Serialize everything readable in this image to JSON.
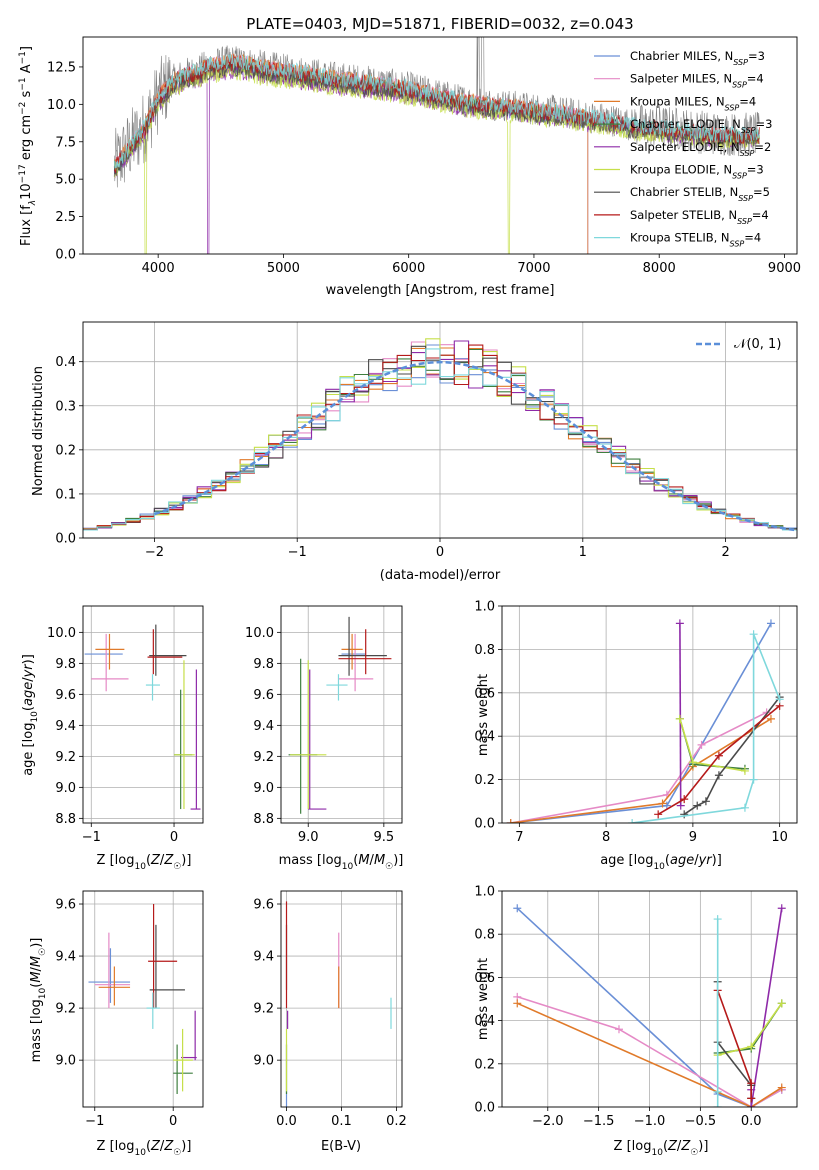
{
  "colors": {
    "chabrier_miles": "#6a8fd6",
    "salpeter_miles": "#e58ac6",
    "kroupa_miles": "#e07a2a",
    "chabrier_elodie": "#3f7f3f",
    "salpeter_elodie": "#8e2aa8",
    "kroupa_elodie": "#c6df4a",
    "chabrier_stelib": "#4a4a4a",
    "salpeter_stelib": "#b51a1a",
    "kroupa_stelib": "#7fd8dc",
    "data_gray": "#808080",
    "normal_curve": "#5b8fd9"
  },
  "chart_data": [
    {
      "id": "spectrum",
      "type": "line",
      "title": "PLATE=0403, MJD=51871, FIBERID=0032, z=0.043",
      "xlabel": "wavelength [Angstrom, rest frame]",
      "ylabel": "Flux [f$_\\lambda$10$^{-17}$ erg cm$^{-2}$ s$^{-1}$ A$^{-1}$]",
      "ylabel_parts": [
        "Flux [f",
        "λ",
        "10",
        "−17",
        " erg cm",
        "−2",
        " s",
        "−1",
        " A",
        "−1",
        "]"
      ],
      "xlim": [
        3400,
        9100
      ],
      "ylim": [
        0,
        14.5
      ],
      "xticks": [
        4000,
        5000,
        6000,
        7000,
        8000,
        9000
      ],
      "yticks": [
        0.0,
        2.5,
        5.0,
        7.5,
        10.0,
        12.5
      ],
      "ytick_labels": [
        "0.0",
        "2.5",
        "5.0",
        "7.5",
        "10.0",
        "12.5"
      ],
      "grid": false,
      "legend_position": "top-right",
      "continuum": {
        "x": [
          3650,
          3700,
          3800,
          3900,
          4000,
          4100,
          4200,
          4300,
          4400,
          4500,
          4600,
          4700,
          4800,
          5000,
          5200,
          5400,
          5600,
          5800,
          6000,
          6200,
          6400,
          6600,
          6800,
          7000,
          7200,
          7400,
          7600,
          7800,
          8000,
          8200,
          8400,
          8600,
          8800
        ],
        "y": [
          5.8,
          6.4,
          7.5,
          8.6,
          10.5,
          11.5,
          12.0,
          12.2,
          12.6,
          12.8,
          12.9,
          12.8,
          12.6,
          12.3,
          12.1,
          11.8,
          11.6,
          11.4,
          11.1,
          10.7,
          10.3,
          10.1,
          9.9,
          9.7,
          9.5,
          9.2,
          9.0,
          8.6,
          8.5,
          8.3,
          8.1,
          8.0,
          8.0
        ]
      },
      "series_names": [
        "Chabrier MILES, N_SSP=3",
        "Salpeter MILES, N_SSP=4",
        "Kroupa MILES, N_SSP=4",
        "Chabrier ELODIE, N_SSP=3",
        "Salpeter ELODIE, N_SSP=2",
        "Kroupa ELODIE, N_SSP=3",
        "Chabrier STELIB, N_SSP=5",
        "Salpeter STELIB, N_SSP=4",
        "Kroupa STELIB, N_SSP=4"
      ],
      "legend": [
        {
          "name": "Chabrier MILES, N",
          "sub": "SSP",
          "suffix": "=3",
          "color_key": "chabrier_miles"
        },
        {
          "name": "Salpeter MILES, N",
          "sub": "SSP",
          "suffix": "=4",
          "color_key": "salpeter_miles"
        },
        {
          "name": "Kroupa MILES, N",
          "sub": "SSP",
          "suffix": "=4",
          "color_key": "kroupa_miles"
        },
        {
          "name": "Chabrier ELODIE, N",
          "sub": "SSP",
          "suffix": "=3",
          "color_key": "chabrier_elodie"
        },
        {
          "name": "Salpeter ELODIE, N",
          "sub": "SSP",
          "suffix": "=2",
          "color_key": "salpeter_elodie"
        },
        {
          "name": "Kroupa ELODIE, N",
          "sub": "SSP",
          "suffix": "=3",
          "color_key": "kroupa_elodie"
        },
        {
          "name": "Chabrier STELIB, N",
          "sub": "SSP",
          "suffix": "=5",
          "color_key": "chabrier_stelib"
        },
        {
          "name": "Salpeter STELIB, N",
          "sub": "SSP",
          "suffix": "=4",
          "color_key": "salpeter_stelib"
        },
        {
          "name": "Kroupa STELIB, N",
          "sub": "SSP",
          "suffix": "=4",
          "color_key": "kroupa_stelib"
        }
      ],
      "annotations": [
        {
          "desc": "Salpeter ELODIE model drops to zero near 4400 A"
        },
        {
          "desc": "Kroupa ELODIE model drops to zero near 3900 A and 6800 A"
        },
        {
          "desc": "Kroupa MILES model drops to zero near 7430 A"
        }
      ]
    },
    {
      "id": "residuals",
      "type": "line",
      "xlabel": "(data-model)/error",
      "ylabel": "Normed distribution",
      "xlim": [
        -2.5,
        2.5
      ],
      "ylim": [
        0,
        0.49
      ],
      "xticks": [
        -2,
        -1,
        0,
        1,
        2
      ],
      "xtick_labels": [
        "−2",
        "−1",
        "0",
        "1",
        "2"
      ],
      "yticks": [
        0.0,
        0.1,
        0.2,
        0.3,
        0.4
      ],
      "ytick_labels": [
        "0.0",
        "0.1",
        "0.2",
        "0.3",
        "0.4"
      ],
      "grid": true,
      "legend_position": "top-right",
      "legend_label": "𝒩(0, 1)",
      "bin_width": 0.1
    },
    {
      "id": "age_vs_Z",
      "type": "scatter",
      "xlabel": "Z [log10(Z/Z☉)]",
      "ylabel": "age [log10(age/yr)]",
      "xlim": [
        -1.1,
        0.35
      ],
      "ylim": [
        8.77,
        10.17
      ],
      "xticks": [
        -1,
        0
      ],
      "xtick_labels": [
        "−1",
        "0"
      ],
      "yticks": [
        8.8,
        9.0,
        9.2,
        9.4,
        9.6,
        9.8,
        10.0
      ],
      "ytick_labels": [
        "8.8",
        "9.0",
        "9.2",
        "9.4",
        "9.6",
        "9.8",
        "10.0"
      ],
      "grid": true,
      "points": [
        {
          "k": "chabrier_miles",
          "x": -0.85,
          "y": 9.86,
          "xl": -1.08,
          "xh": -0.62,
          "yl": 9.86,
          "yh": 9.86
        },
        {
          "k": "salpeter_miles",
          "x": -0.82,
          "y": 9.7,
          "xl": -1.0,
          "xh": -0.55,
          "yl": 9.62,
          "yh": 9.99
        },
        {
          "k": "kroupa_miles",
          "x": -0.78,
          "y": 9.89,
          "xl": -0.95,
          "xh": -0.6,
          "yl": 9.76,
          "yh": 9.99
        },
        {
          "k": "chabrier_elodie",
          "x": 0.08,
          "y": 9.21,
          "xl": 0.0,
          "xh": 0.22,
          "yl": 8.86,
          "yh": 9.63
        },
        {
          "k": "salpeter_elodie",
          "x": 0.27,
          "y": 8.86,
          "xl": 0.2,
          "xh": 0.32,
          "yl": 8.86,
          "yh": 9.76
        },
        {
          "k": "kroupa_elodie",
          "x": 0.12,
          "y": 9.21,
          "xl": 0.0,
          "xh": 0.25,
          "yl": 8.86,
          "yh": 9.82
        },
        {
          "k": "chabrier_stelib",
          "x": -0.22,
          "y": 9.85,
          "xl": -0.3,
          "xh": 0.15,
          "yl": 9.72,
          "yh": 10.05
        },
        {
          "k": "salpeter_stelib",
          "x": -0.25,
          "y": 9.84,
          "xl": -0.32,
          "xh": 0.1,
          "yl": 9.73,
          "yh": 10.02
        },
        {
          "k": "kroupa_stelib",
          "x": -0.26,
          "y": 9.66,
          "xl": -0.34,
          "xh": -0.17,
          "yl": 9.56,
          "yh": 9.73
        }
      ]
    },
    {
      "id": "age_vs_mass",
      "type": "scatter",
      "xlabel": "mass [log10(M/M☉)]",
      "xlim": [
        8.82,
        9.62
      ],
      "ylim": [
        8.77,
        10.17
      ],
      "xticks": [
        9.0,
        9.5
      ],
      "xtick_labels": [
        "9.0",
        "9.5"
      ],
      "yticks": [
        8.8,
        9.0,
        9.2,
        9.4,
        9.6,
        9.8,
        10.0
      ],
      "ytick_labels": [
        "8.8",
        "9.0",
        "9.2",
        "9.4",
        "9.6",
        "9.8",
        "10.0"
      ],
      "grid": true,
      "points": [
        {
          "k": "chabrier_miles",
          "x": 9.3,
          "y": 9.86,
          "xl": 9.22,
          "xh": 9.38,
          "yl": 9.86,
          "yh": 9.86
        },
        {
          "k": "salpeter_miles",
          "x": 9.31,
          "y": 9.7,
          "xl": 9.2,
          "xh": 9.43,
          "yl": 9.62,
          "yh": 9.99
        },
        {
          "k": "kroupa_miles",
          "x": 9.29,
          "y": 9.89,
          "xl": 9.22,
          "xh": 9.36,
          "yl": 9.76,
          "yh": 9.99
        },
        {
          "k": "chabrier_elodie",
          "x": 8.95,
          "y": 9.21,
          "xl": 8.87,
          "xh": 9.06,
          "yl": 8.83,
          "yh": 9.83
        },
        {
          "k": "salpeter_elodie",
          "x": 9.01,
          "y": 8.86,
          "xl": 9.0,
          "xh": 9.12,
          "yl": 8.86,
          "yh": 9.76
        },
        {
          "k": "kroupa_elodie",
          "x": 9.0,
          "y": 9.21,
          "xl": 8.88,
          "xh": 9.12,
          "yl": 8.86,
          "yh": 9.82
        },
        {
          "k": "chabrier_stelib",
          "x": 9.27,
          "y": 9.85,
          "xl": 9.2,
          "xh": 9.52,
          "yl": 9.72,
          "yh": 10.1
        },
        {
          "k": "salpeter_stelib",
          "x": 9.38,
          "y": 9.83,
          "xl": 9.2,
          "xh": 9.55,
          "yl": 9.73,
          "yh": 10.02
        },
        {
          "k": "kroupa_stelib",
          "x": 9.2,
          "y": 9.66,
          "xl": 9.12,
          "xh": 9.26,
          "yl": 9.56,
          "yh": 9.73
        }
      ]
    },
    {
      "id": "weight_vs_age",
      "type": "line",
      "xlabel": "age [log10(age/yr)]",
      "ylabel": "mass weight",
      "xlim": [
        6.8,
        10.2
      ],
      "ylim": [
        0,
        1
      ],
      "xticks": [
        7,
        8,
        9,
        10
      ],
      "xtick_labels": [
        "7",
        "8",
        "9",
        "10"
      ],
      "yticks": [
        0.0,
        0.2,
        0.4,
        0.6,
        0.8,
        1.0
      ],
      "ytick_labels": [
        "0.0",
        "0.2",
        "0.4",
        "0.6",
        "0.8",
        "1.0"
      ],
      "grid": true,
      "series": [
        {
          "k": "chabrier_miles",
          "x": [
            6.9,
            8.7,
            9.9
          ],
          "y": [
            0.0,
            0.08,
            0.92
          ]
        },
        {
          "k": "salpeter_miles",
          "x": [
            6.9,
            8.7,
            9.1,
            9.85
          ],
          "y": [
            0.0,
            0.13,
            0.36,
            0.51
          ]
        },
        {
          "k": "kroupa_miles",
          "x": [
            6.9,
            8.65,
            9.0,
            9.9
          ],
          "y": [
            0.0,
            0.09,
            0.26,
            0.48
          ]
        },
        {
          "k": "chabrier_elodie",
          "x": [
            8.85,
            9.0,
            9.6
          ],
          "y": [
            0.48,
            0.27,
            0.25
          ]
        },
        {
          "k": "salpeter_elodie",
          "x": [
            8.85,
            8.86
          ],
          "y": [
            0.92,
            0.08
          ]
        },
        {
          "k": "kroupa_elodie",
          "x": [
            8.85,
            9.0,
            9.6
          ],
          "y": [
            0.48,
            0.28,
            0.24
          ]
        },
        {
          "k": "chabrier_stelib",
          "x": [
            8.9,
            9.05,
            9.15,
            9.3,
            10.0
          ],
          "y": [
            0.04,
            0.08,
            0.1,
            0.22,
            0.58
          ]
        },
        {
          "k": "salpeter_stelib",
          "x": [
            8.6,
            8.9,
            9.3,
            10.0
          ],
          "y": [
            0.04,
            0.11,
            0.31,
            0.54
          ]
        },
        {
          "k": "kroupa_stelib",
          "x": [
            8.3,
            9.6,
            9.7,
            9.7,
            10.0
          ],
          "y": [
            0.0,
            0.07,
            0.2,
            0.87,
            0.57
          ]
        }
      ]
    },
    {
      "id": "mass_vs_Z",
      "type": "scatter",
      "xlabel": "Z [log10(Z/Z☉)]",
      "ylabel": "mass [log10(M/M☉)]",
      "xlim": [
        -1.15,
        0.38
      ],
      "ylim": [
        8.82,
        9.65
      ],
      "xticks": [
        -1,
        0
      ],
      "xtick_labels": [
        "−1",
        "0"
      ],
      "yticks": [
        9.0,
        9.2,
        9.4,
        9.6
      ],
      "ytick_labels": [
        "9.0",
        "9.2",
        "9.4",
        "9.6"
      ],
      "grid": true,
      "points": [
        {
          "k": "chabrier_miles",
          "x": -0.8,
          "y": 9.3,
          "xl": -1.08,
          "xh": -0.55,
          "yl": 9.22,
          "yh": 9.43
        },
        {
          "k": "salpeter_miles",
          "x": -0.82,
          "y": 9.29,
          "xl": -1.0,
          "xh": -0.55,
          "yl": 9.2,
          "yh": 9.49
        },
        {
          "k": "kroupa_miles",
          "x": -0.75,
          "y": 9.28,
          "xl": -0.95,
          "xh": -0.55,
          "yl": 9.21,
          "yh": 9.36
        },
        {
          "k": "chabrier_elodie",
          "x": 0.05,
          "y": 8.95,
          "xl": 0.0,
          "xh": 0.25,
          "yl": 8.87,
          "yh": 9.06
        },
        {
          "k": "salpeter_elodie",
          "x": 0.28,
          "y": 9.01,
          "xl": 0.1,
          "xh": 0.3,
          "yl": 9.0,
          "yh": 9.19
        },
        {
          "k": "kroupa_elodie",
          "x": 0.12,
          "y": 9.0,
          "xl": 0.0,
          "xh": 0.25,
          "yl": 8.88,
          "yh": 9.12
        },
        {
          "k": "chabrier_stelib",
          "x": -0.22,
          "y": 9.27,
          "xl": -0.3,
          "xh": 0.15,
          "yl": 9.2,
          "yh": 9.52
        },
        {
          "k": "salpeter_stelib",
          "x": -0.25,
          "y": 9.38,
          "xl": -0.32,
          "xh": 0.05,
          "yl": 9.2,
          "yh": 9.6
        },
        {
          "k": "kroupa_stelib",
          "x": -0.26,
          "y": 9.2,
          "xl": -0.34,
          "xh": -0.17,
          "yl": 9.12,
          "yh": 9.26
        }
      ]
    },
    {
      "id": "mass_vs_ebv",
      "type": "scatter",
      "xlabel": "E(B-V)",
      "xlim": [
        -0.01,
        0.21
      ],
      "ylim": [
        8.82,
        9.65
      ],
      "xticks": [
        0.0,
        0.1,
        0.2
      ],
      "xtick_labels": [
        "0.0",
        "0.1",
        "0.2"
      ],
      "yticks": [
        9.0,
        9.2,
        9.4,
        9.6
      ],
      "ytick_labels": [
        "9.0",
        "9.2",
        "9.4",
        "9.6"
      ],
      "grid": true,
      "points": [
        {
          "k": "chabrier_miles",
          "x": 0.0,
          "y": 8.85,
          "yl": 8.82,
          "yh": 8.88
        },
        {
          "k": "salpeter_miles",
          "x": 0.095,
          "y": 9.34,
          "yl": 9.2,
          "yh": 9.49
        },
        {
          "k": "kroupa_miles",
          "x": 0.095,
          "y": 9.28,
          "yl": 9.2,
          "yh": 9.36
        },
        {
          "k": "chabrier_elodie",
          "x": 0.0,
          "y": 8.95,
          "yl": 8.87,
          "yh": 9.06
        },
        {
          "k": "salpeter_elodie",
          "x": 0.002,
          "y": 9.15,
          "yl": 9.12,
          "yh": 9.19
        },
        {
          "k": "kroupa_elodie",
          "x": 0.0,
          "y": 9.0,
          "yl": 8.88,
          "yh": 9.12
        },
        {
          "k": "chabrier_stelib",
          "x": 0.0,
          "y": 9.4,
          "yl": 9.27,
          "yh": 9.52
        },
        {
          "k": "salpeter_stelib",
          "x": 0.0,
          "y": 9.4,
          "yl": 9.2,
          "yh": 9.61
        },
        {
          "k": "kroupa_stelib",
          "x": 0.19,
          "y": 9.18,
          "yl": 9.12,
          "yh": 9.24
        }
      ]
    },
    {
      "id": "weight_vs_Z",
      "type": "line",
      "xlabel": "Z [log10(Z/Z☉)]",
      "ylabel": "mass weight",
      "xlim": [
        -2.45,
        0.45
      ],
      "ylim": [
        0,
        1
      ],
      "xticks": [
        -2.0,
        -1.5,
        -1.0,
        -0.5,
        0.0
      ],
      "xtick_labels": [
        "−2.0",
        "−1.5",
        "−1.0",
        "−0.5",
        "0.0"
      ],
      "yticks": [
        0.0,
        0.2,
        0.4,
        0.6,
        0.8,
        1.0
      ],
      "ytick_labels": [
        "0.0",
        "0.2",
        "0.4",
        "0.6",
        "0.8",
        "1.0"
      ],
      "grid": true,
      "series": [
        {
          "k": "chabrier_miles",
          "x": [
            -2.3,
            -0.33,
            0.0,
            0.3
          ],
          "y": [
            0.92,
            0.06,
            0.0,
            0.08
          ]
        },
        {
          "k": "salpeter_miles",
          "x": [
            -2.3,
            -1.3,
            0.0,
            0.3
          ],
          "y": [
            0.51,
            0.36,
            0.0,
            0.08
          ]
        },
        {
          "k": "kroupa_miles",
          "x": [
            -2.3,
            0.0,
            0.3
          ],
          "y": [
            0.48,
            0.0,
            0.09
          ]
        },
        {
          "k": "chabrier_elodie",
          "x": [
            -0.33,
            0.0,
            0.3
          ],
          "y": [
            0.25,
            0.27,
            0.48
          ]
        },
        {
          "k": "salpeter_elodie",
          "x": [
            0.0,
            0.0,
            0.3
          ],
          "y": [
            0.08,
            0.0,
            0.92
          ]
        },
        {
          "k": "kroupa_elodie",
          "x": [
            -0.33,
            0.0,
            0.3
          ],
          "y": [
            0.24,
            0.28,
            0.48
          ]
        },
        {
          "k": "chabrier_stelib",
          "x": [
            -0.33,
            -0.33,
            0.0,
            0.0
          ],
          "y": [
            0.58,
            0.3,
            0.1,
            0.04
          ]
        },
        {
          "k": "salpeter_stelib",
          "x": [
            -0.33,
            0.0,
            0.0
          ],
          "y": [
            0.54,
            0.11,
            0.04
          ]
        },
        {
          "k": "kroupa_stelib",
          "x": [
            -0.33,
            -0.33,
            -0.33
          ],
          "y": [
            0.87,
            0.07,
            0.0
          ]
        }
      ]
    }
  ]
}
